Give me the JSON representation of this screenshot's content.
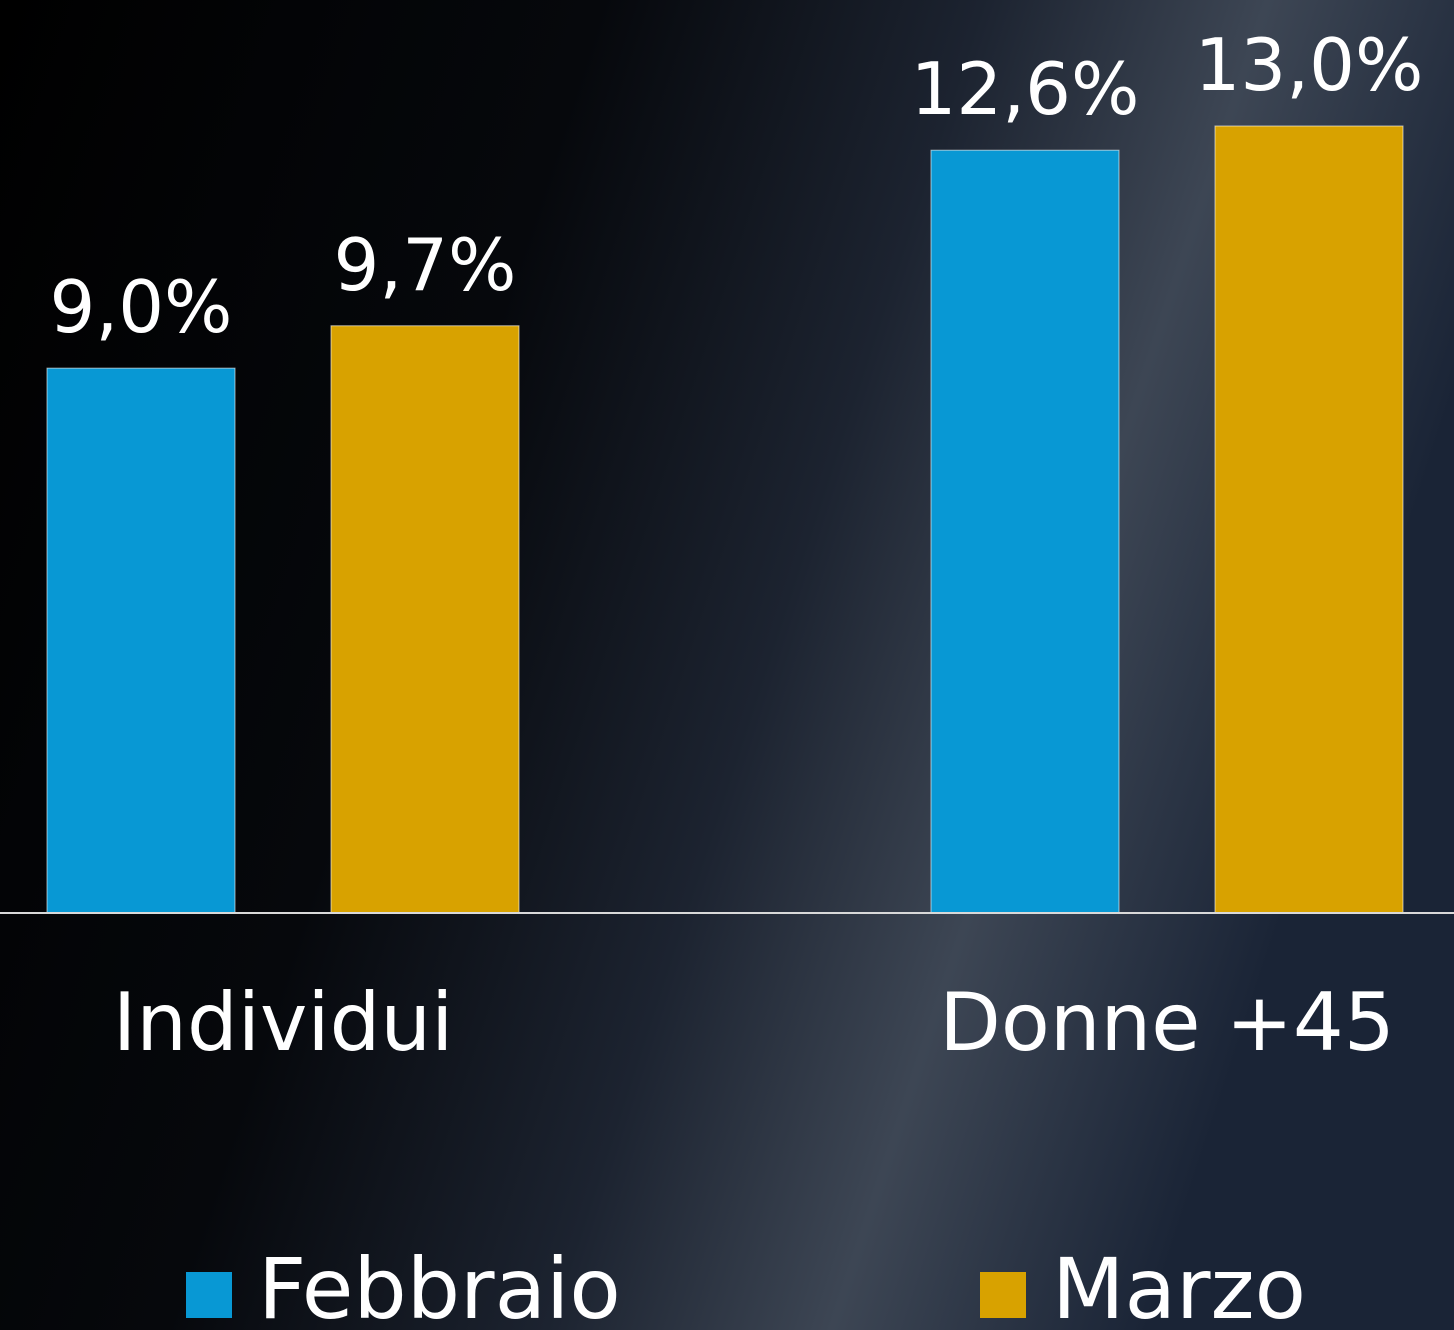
{
  "chart_data": {
    "type": "bar",
    "categories": [
      "Individui",
      "Donne +45"
    ],
    "series": [
      {
        "name": "Febbraio",
        "color": "#0898d4",
        "values": [
          9.0,
          12.6
        ],
        "value_labels": [
          "9,0%",
          "12,6%"
        ]
      },
      {
        "name": "Marzo",
        "color": "#d8a200",
        "values": [
          9.7,
          13.0
        ],
        "value_labels": [
          "9,7%",
          "13,0%"
        ]
      }
    ],
    "legend": "bottom"
  }
}
